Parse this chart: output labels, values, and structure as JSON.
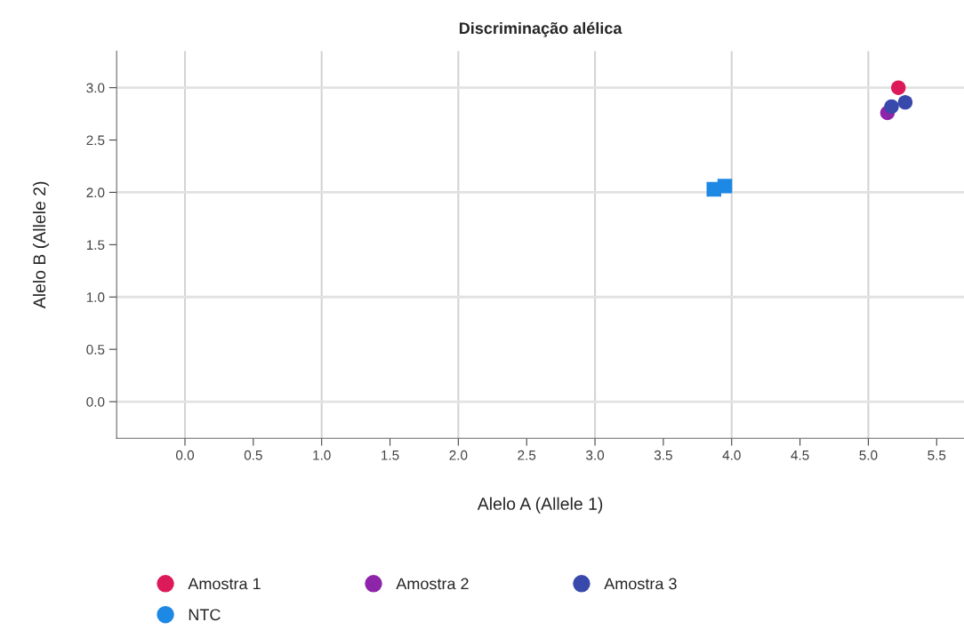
{
  "chart_data": {
    "type": "scatter",
    "title": "Discriminação alélica",
    "xlabel": "Alelo A (Allele 1)",
    "ylabel": "Alelo B (Allele 2)",
    "xlim": [
      -0.5,
      5.7
    ],
    "xticks": [
      {
        "value": 0,
        "label": "0.0"
      },
      0.5,
      {
        "value": 1,
        "label": "1.0"
      },
      1.5,
      {
        "value": 2,
        "label": "2.0"
      },
      2.5,
      {
        "value": 3,
        "label": "3.0"
      },
      3.5,
      {
        "value": 4,
        "label": "4.0"
      },
      4.5,
      {
        "value": 5,
        "label": "5.0"
      },
      5.5
    ],
    "ylim": [
      -0.35,
      3.35
    ],
    "yticks": [
      {
        "value": 0,
        "label": "0.0"
      },
      0.5,
      {
        "value": 1,
        "label": "1.0"
      },
      1.5,
      {
        "value": 2,
        "label": "2.0"
      },
      2.5,
      {
        "value": 3,
        "label": "3.0"
      }
    ],
    "grid": true,
    "legend": "bottom",
    "series": [
      {
        "name": "Amostra 1",
        "color": "#dc1a5a",
        "marker": "circle",
        "x": [
          5.22
        ],
        "values": [
          3.0
        ]
      },
      {
        "name": "Amostra 2",
        "color": "#8e24aa",
        "marker": "circle",
        "x": [
          5.14
        ],
        "values": [
          2.76
        ]
      },
      {
        "name": "Amostra 3",
        "color": "#3949ab",
        "marker": "circle",
        "x": [
          5.17,
          5.27
        ],
        "values": [
          2.82,
          2.86
        ]
      },
      {
        "name": "NTC",
        "color": "#1e88e5",
        "marker": "square",
        "x": [
          3.87,
          3.95
        ],
        "values": [
          2.03,
          2.06
        ]
      }
    ]
  }
}
